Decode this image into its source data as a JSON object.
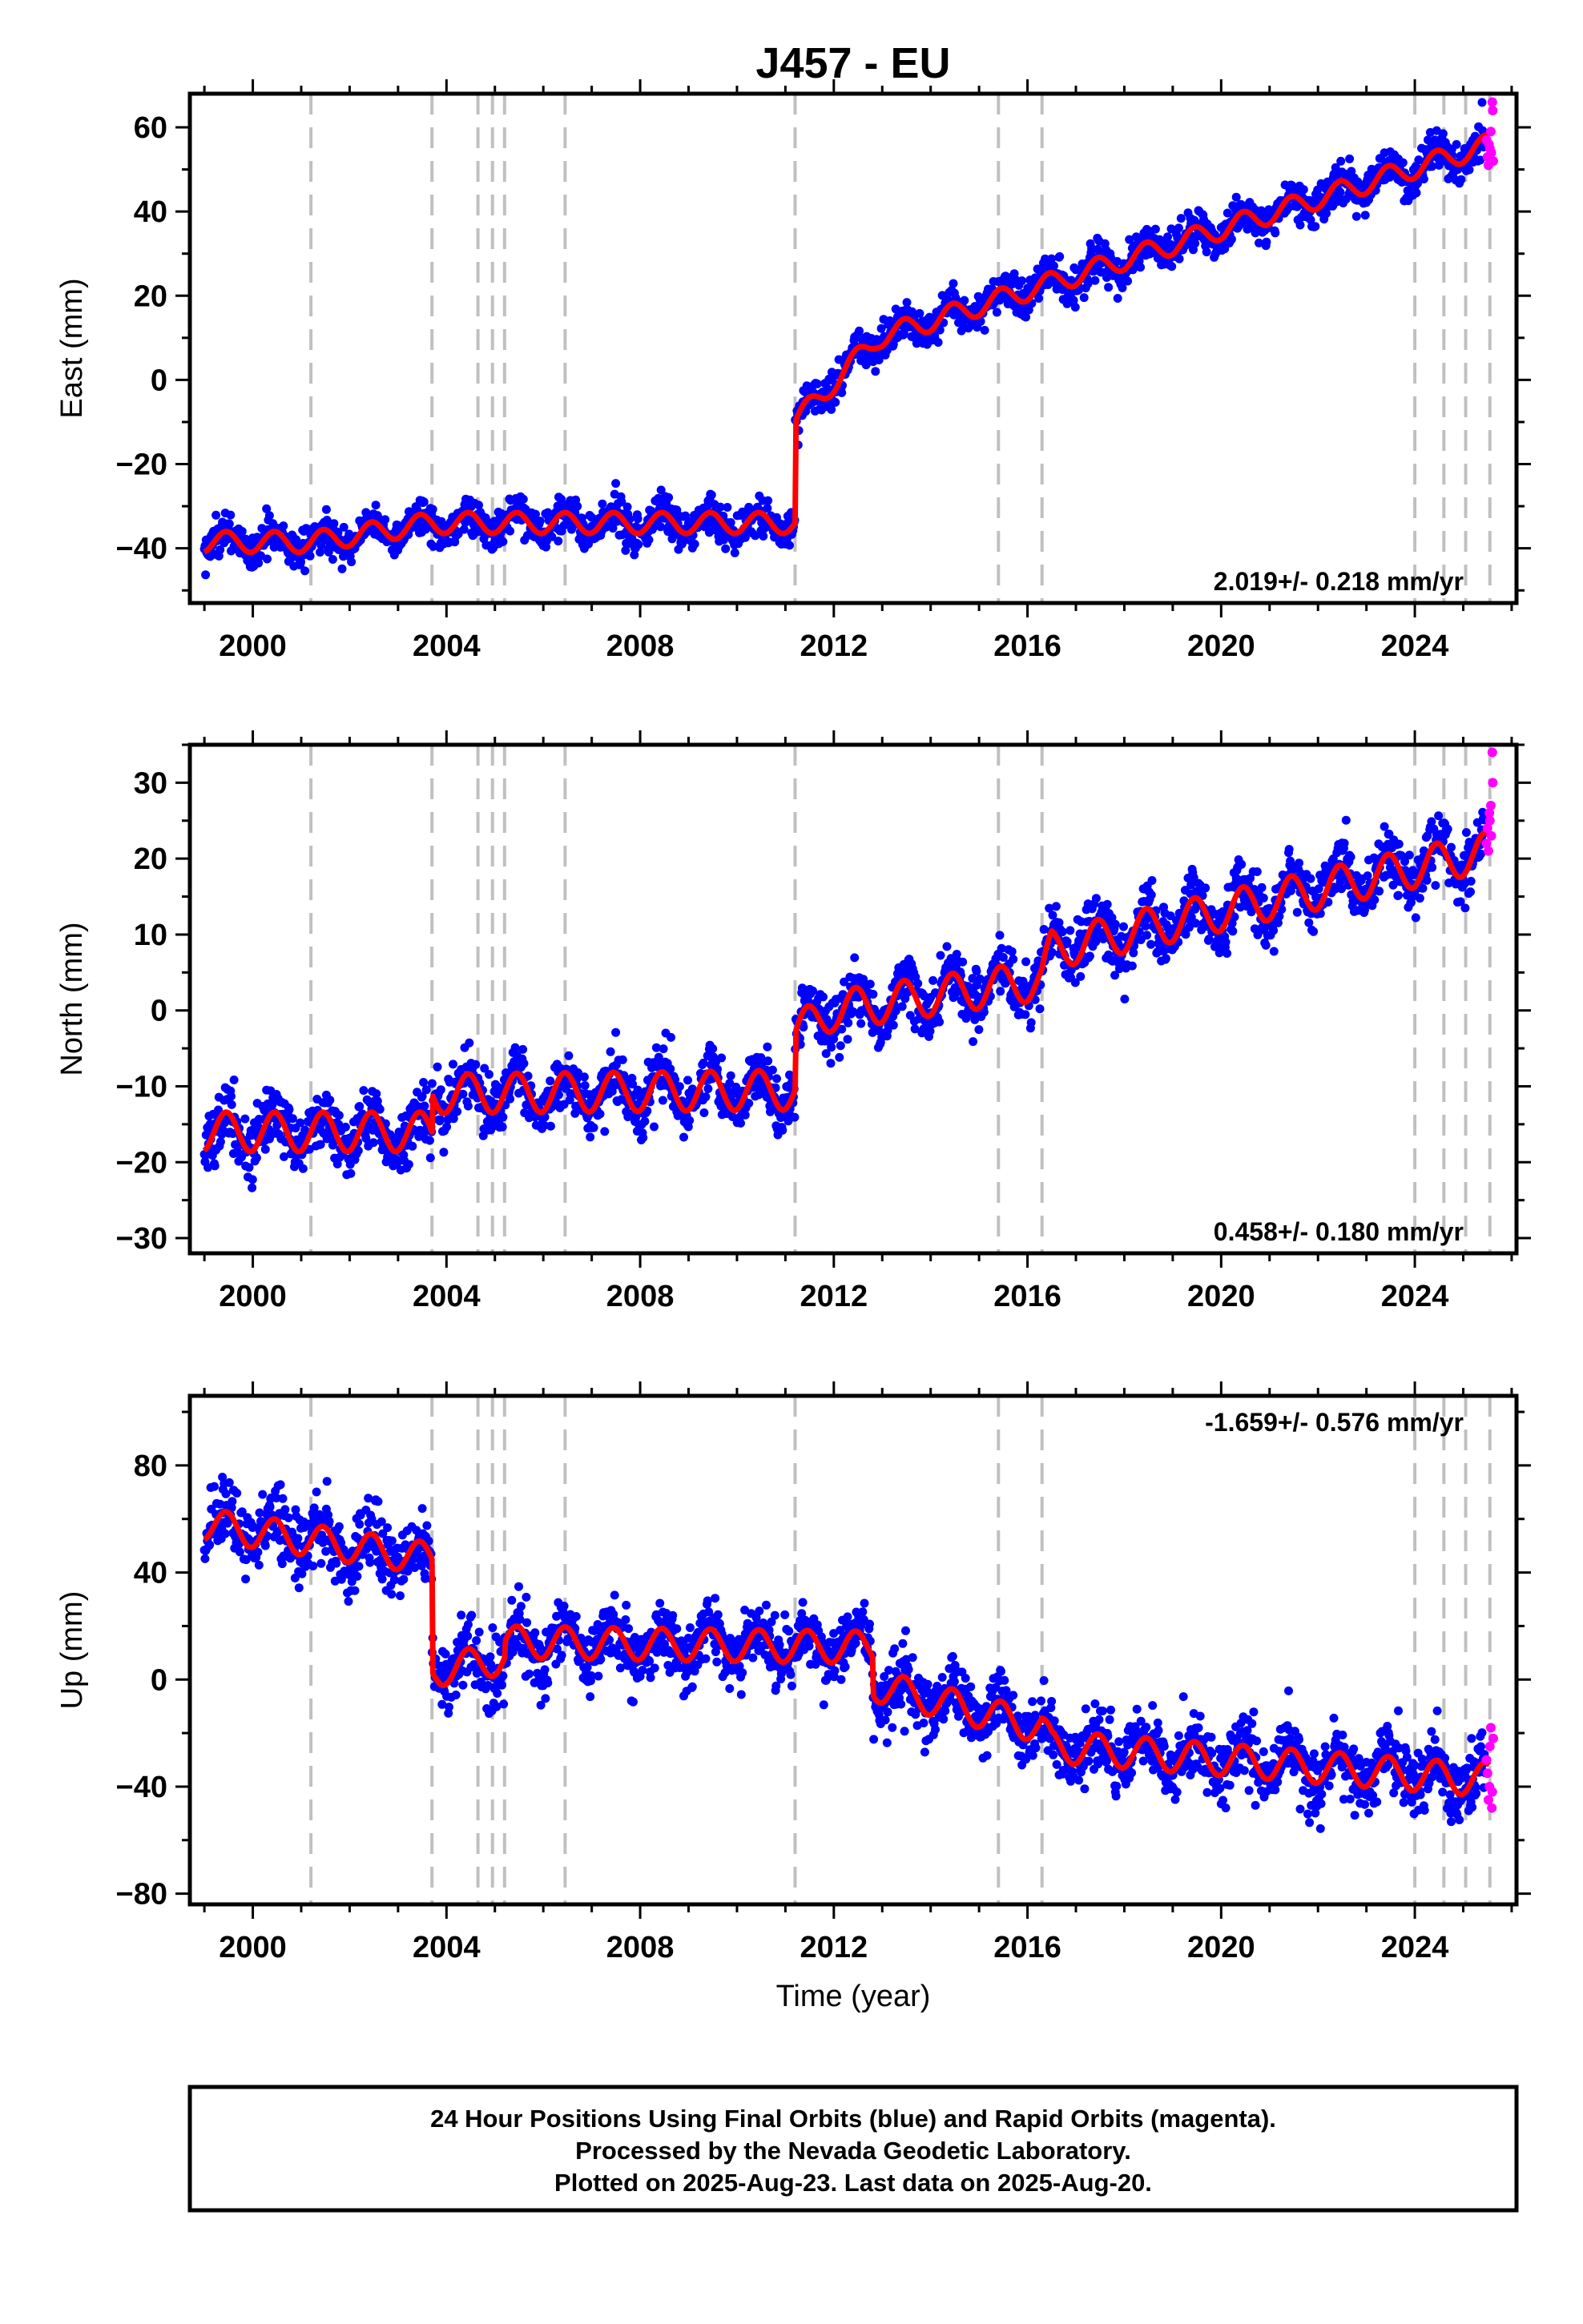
{
  "title": "J457 - EU",
  "colors": {
    "final": "#0000ff",
    "rapid": "#ff00ff",
    "model": "#ff0000",
    "event": "#c0c0c0",
    "frame": "#000000"
  },
  "xlabel": "Time (year)",
  "footer": {
    "lines": [
      "24 Hour Positions Using Final Orbits (blue) and Rapid Orbits (magenta).",
      "Processed by the Nevada Geodetic Laboratory.",
      "Plotted on 2025-Aug-23. Last data on 2025-Aug-20."
    ]
  },
  "chart_data": [
    {
      "type": "scatter",
      "component": "East",
      "ylabel": "East (mm)",
      "rate": "2.019+/- 0.218 mm/yr",
      "rate_position": "bottom-right",
      "xlim": [
        1998.7,
        2026.1
      ],
      "ylim": [
        -53,
        68
      ],
      "xticks": [
        2000,
        2004,
        2008,
        2012,
        2016,
        2020,
        2024
      ],
      "xtick_labels": [
        "2000",
        "2004",
        "2008",
        "2012",
        "2016",
        "2020",
        "2024"
      ],
      "yticks": [
        -40,
        -20,
        0,
        20,
        40,
        60
      ],
      "ytick_labels": [
        "−40",
        "−20",
        "0",
        "20",
        "40",
        "60"
      ],
      "event_lines": [
        2001.2,
        2003.7,
        2004.65,
        2004.95,
        2005.2,
        2006.45,
        2011.2,
        2015.4,
        2016.3,
        2024.0,
        2024.6,
        2025.05,
        2025.55
      ],
      "model_breakpoints": [
        [
          2001.2,
          -38.5
        ],
        [
          2003.7,
          -34
        ],
        [
          2011.2,
          -34
        ],
        [
          2011.2,
          -10
        ],
        [
          2012.9,
          10
        ],
        [
          2025.55,
          56
        ]
      ],
      "seasonal_amplitude": 2.5,
      "noise": 2.2,
      "final_range": [
        1999.0,
        2025.45
      ],
      "rapid_points": {
        "x": [
          2025.48,
          2025.5,
          2025.52,
          2025.53,
          2025.55,
          2025.57,
          2025.58,
          2025.6,
          2025.61,
          2025.62
        ],
        "y": [
          57,
          53,
          51,
          56,
          55,
          59,
          54,
          66,
          64,
          52
        ]
      }
    },
    {
      "type": "scatter",
      "component": "North",
      "ylabel": "North (mm)",
      "rate": "0.458+/- 0.180 mm/yr",
      "rate_position": "bottom-right",
      "xlim": [
        1998.7,
        2026.1
      ],
      "ylim": [
        -32,
        35
      ],
      "xticks": [
        2000,
        2004,
        2008,
        2012,
        2016,
        2020,
        2024
      ],
      "xtick_labels": [
        "2000",
        "2004",
        "2008",
        "2012",
        "2016",
        "2020",
        "2024"
      ],
      "yticks": [
        -30,
        -20,
        -10,
        0,
        10,
        20,
        30
      ],
      "ytick_labels": [
        "−30",
        "−20",
        "−10",
        "0",
        "10",
        "20",
        "30"
      ],
      "event_lines": [
        2001.2,
        2003.7,
        2004.65,
        2004.95,
        2005.2,
        2006.45,
        2011.2,
        2015.4,
        2016.3,
        2024.0,
        2024.6,
        2025.05,
        2025.55
      ],
      "model_breakpoints": [
        [
          2003.7,
          -16
        ],
        [
          2003.7,
          -11
        ],
        [
          2011.2,
          -10.5
        ],
        [
          2011.2,
          -3
        ],
        [
          2012.0,
          0
        ],
        [
          2016.3,
          4
        ],
        [
          2016.5,
          8
        ],
        [
          2025.55,
          21
        ]
      ],
      "seasonal_amplitude": 2.6,
      "noise": 1.9,
      "final_range": [
        1999.0,
        2025.45
      ],
      "rapid_points": {
        "x": [
          2025.48,
          2025.5,
          2025.52,
          2025.54,
          2025.55,
          2025.57,
          2025.58,
          2025.6,
          2025.61
        ],
        "y": [
          22,
          24,
          21,
          26,
          25,
          27,
          23,
          34,
          30
        ]
      }
    },
    {
      "type": "scatter",
      "component": "Up",
      "ylabel": "Up (mm)",
      "rate": "-1.659+/- 0.576 mm/yr",
      "rate_position": "top-right",
      "xlim": [
        1998.7,
        2026.1
      ],
      "ylim": [
        -84,
        106
      ],
      "xticks": [
        2000,
        2004,
        2008,
        2012,
        2016,
        2020,
        2024
      ],
      "xtick_labels": [
        "2000",
        "2004",
        "2008",
        "2012",
        "2016",
        "2020",
        "2024"
      ],
      "yticks": [
        -80,
        -40,
        0,
        40,
        80
      ],
      "ytick_labels": [
        "−80",
        "−40",
        "0",
        "40",
        "80"
      ],
      "event_lines": [
        2001.2,
        2003.7,
        2004.65,
        2004.95,
        2005.2,
        2006.45,
        2011.2,
        2015.4,
        2016.3,
        2024.0,
        2024.6,
        2025.05,
        2025.55
      ],
      "model_breakpoints": [
        [
          1999.0,
          58
        ],
        [
          2003.7,
          45
        ],
        [
          2003.7,
          3
        ],
        [
          2005.2,
          8
        ],
        [
          2005.2,
          14
        ],
        [
          2012.8,
          12
        ],
        [
          2012.8,
          -2
        ],
        [
          2016.3,
          -18
        ],
        [
          2016.5,
          -25
        ],
        [
          2025.0,
          -37
        ],
        [
          2025.55,
          -37
        ]
      ],
      "seasonal_amplitude": 6,
      "noise": 6,
      "final_range": [
        1999.0,
        2025.45
      ],
      "rapid_points": {
        "x": [
          2025.48,
          2025.5,
          2025.52,
          2025.54,
          2025.55,
          2025.57,
          2025.59,
          2025.6,
          2025.62
        ],
        "y": [
          -30,
          -35,
          -45,
          -40,
          -25,
          -18,
          -48,
          -42,
          -22
        ]
      }
    }
  ]
}
